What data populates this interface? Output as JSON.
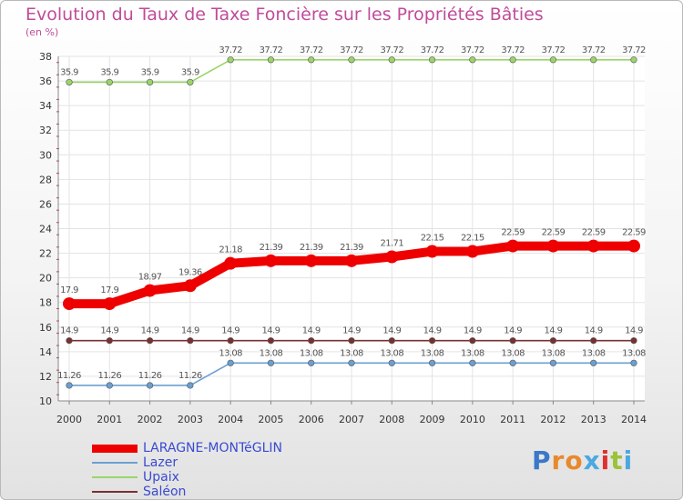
{
  "header": {
    "title": "Evolution du Taux de Taxe Foncière sur les Propriétés Bâties",
    "units": "(en %)"
  },
  "logo": {
    "text": "Proxiti",
    "colors": [
      "#3a78c8",
      "#e8892e",
      "#e8892e",
      "#4ba8e0",
      "#e03030",
      "#9ac23a",
      "#4ba8e0"
    ]
  },
  "chart_data": {
    "type": "line",
    "title": "Evolution du Taux de Taxe Foncière sur les Propriétés Bâties",
    "ylabel": "(en %)",
    "xlabel": "",
    "x": [
      "2000",
      "2001",
      "2002",
      "2003",
      "2004",
      "2005",
      "2006",
      "2007",
      "2008",
      "2009",
      "2010",
      "2011",
      "2012",
      "2013",
      "2014"
    ],
    "ylim": [
      10,
      38
    ],
    "yticks": [
      10,
      12,
      14,
      16,
      18,
      20,
      22,
      24,
      26,
      28,
      30,
      32,
      34,
      36,
      38
    ],
    "grid": true,
    "legend_position": "bottom-left",
    "series": [
      {
        "name": "LARAGNE-MONTéGLIN",
        "color": "#ee0000",
        "values": [
          17.9,
          17.9,
          18.97,
          19.36,
          21.18,
          21.39,
          21.39,
          21.39,
          21.71,
          22.15,
          22.15,
          22.59,
          22.59,
          22.59,
          22.59
        ],
        "labels": [
          "17.9",
          "17.9",
          "18.97",
          "19.36",
          "21.18",
          "21.39",
          "21.39",
          "21.39",
          "21.71",
          "22.15",
          "22.15",
          "22.59",
          "22.59",
          "22.59",
          "22.59"
        ]
      },
      {
        "name": "Lazer",
        "color": "#6b9fd1",
        "values": [
          11.26,
          11.26,
          11.26,
          11.26,
          13.08,
          13.08,
          13.08,
          13.08,
          13.08,
          13.08,
          13.08,
          13.08,
          13.08,
          13.08,
          13.08
        ],
        "labels": [
          "11.26",
          "11.26",
          "11.26",
          "11.26",
          "13.08",
          "13.08",
          "13.08",
          "13.08",
          "13.08",
          "13.08",
          "13.08",
          "13.08",
          "13.08",
          "13.08",
          "13.08"
        ]
      },
      {
        "name": "Upaix",
        "color": "#9ad46a",
        "values": [
          35.9,
          35.9,
          35.9,
          35.9,
          37.72,
          37.72,
          37.72,
          37.72,
          37.72,
          37.72,
          37.72,
          37.72,
          37.72,
          37.72,
          37.72
        ],
        "labels": [
          "35.9",
          "35.9",
          "35.9",
          "35.9",
          "37.72",
          "37.72",
          "37.72",
          "37.72",
          "37.72",
          "37.72",
          "37.72",
          "37.72",
          "37.72",
          "37.72",
          "37.72"
        ]
      },
      {
        "name": "Saléon",
        "color": "#7a3030",
        "values": [
          14.9,
          14.9,
          14.9,
          14.9,
          14.9,
          14.9,
          14.9,
          14.9,
          14.9,
          14.9,
          14.9,
          14.9,
          14.9,
          14.9,
          14.9
        ],
        "labels": [
          "14.9",
          "14.9",
          "14.9",
          "14.9",
          "14.9",
          "14.9",
          "14.9",
          "14.9",
          "14.9",
          "14.9",
          "14.9",
          "14.9",
          "14.9",
          "14.9",
          "14.9"
        ]
      }
    ]
  }
}
